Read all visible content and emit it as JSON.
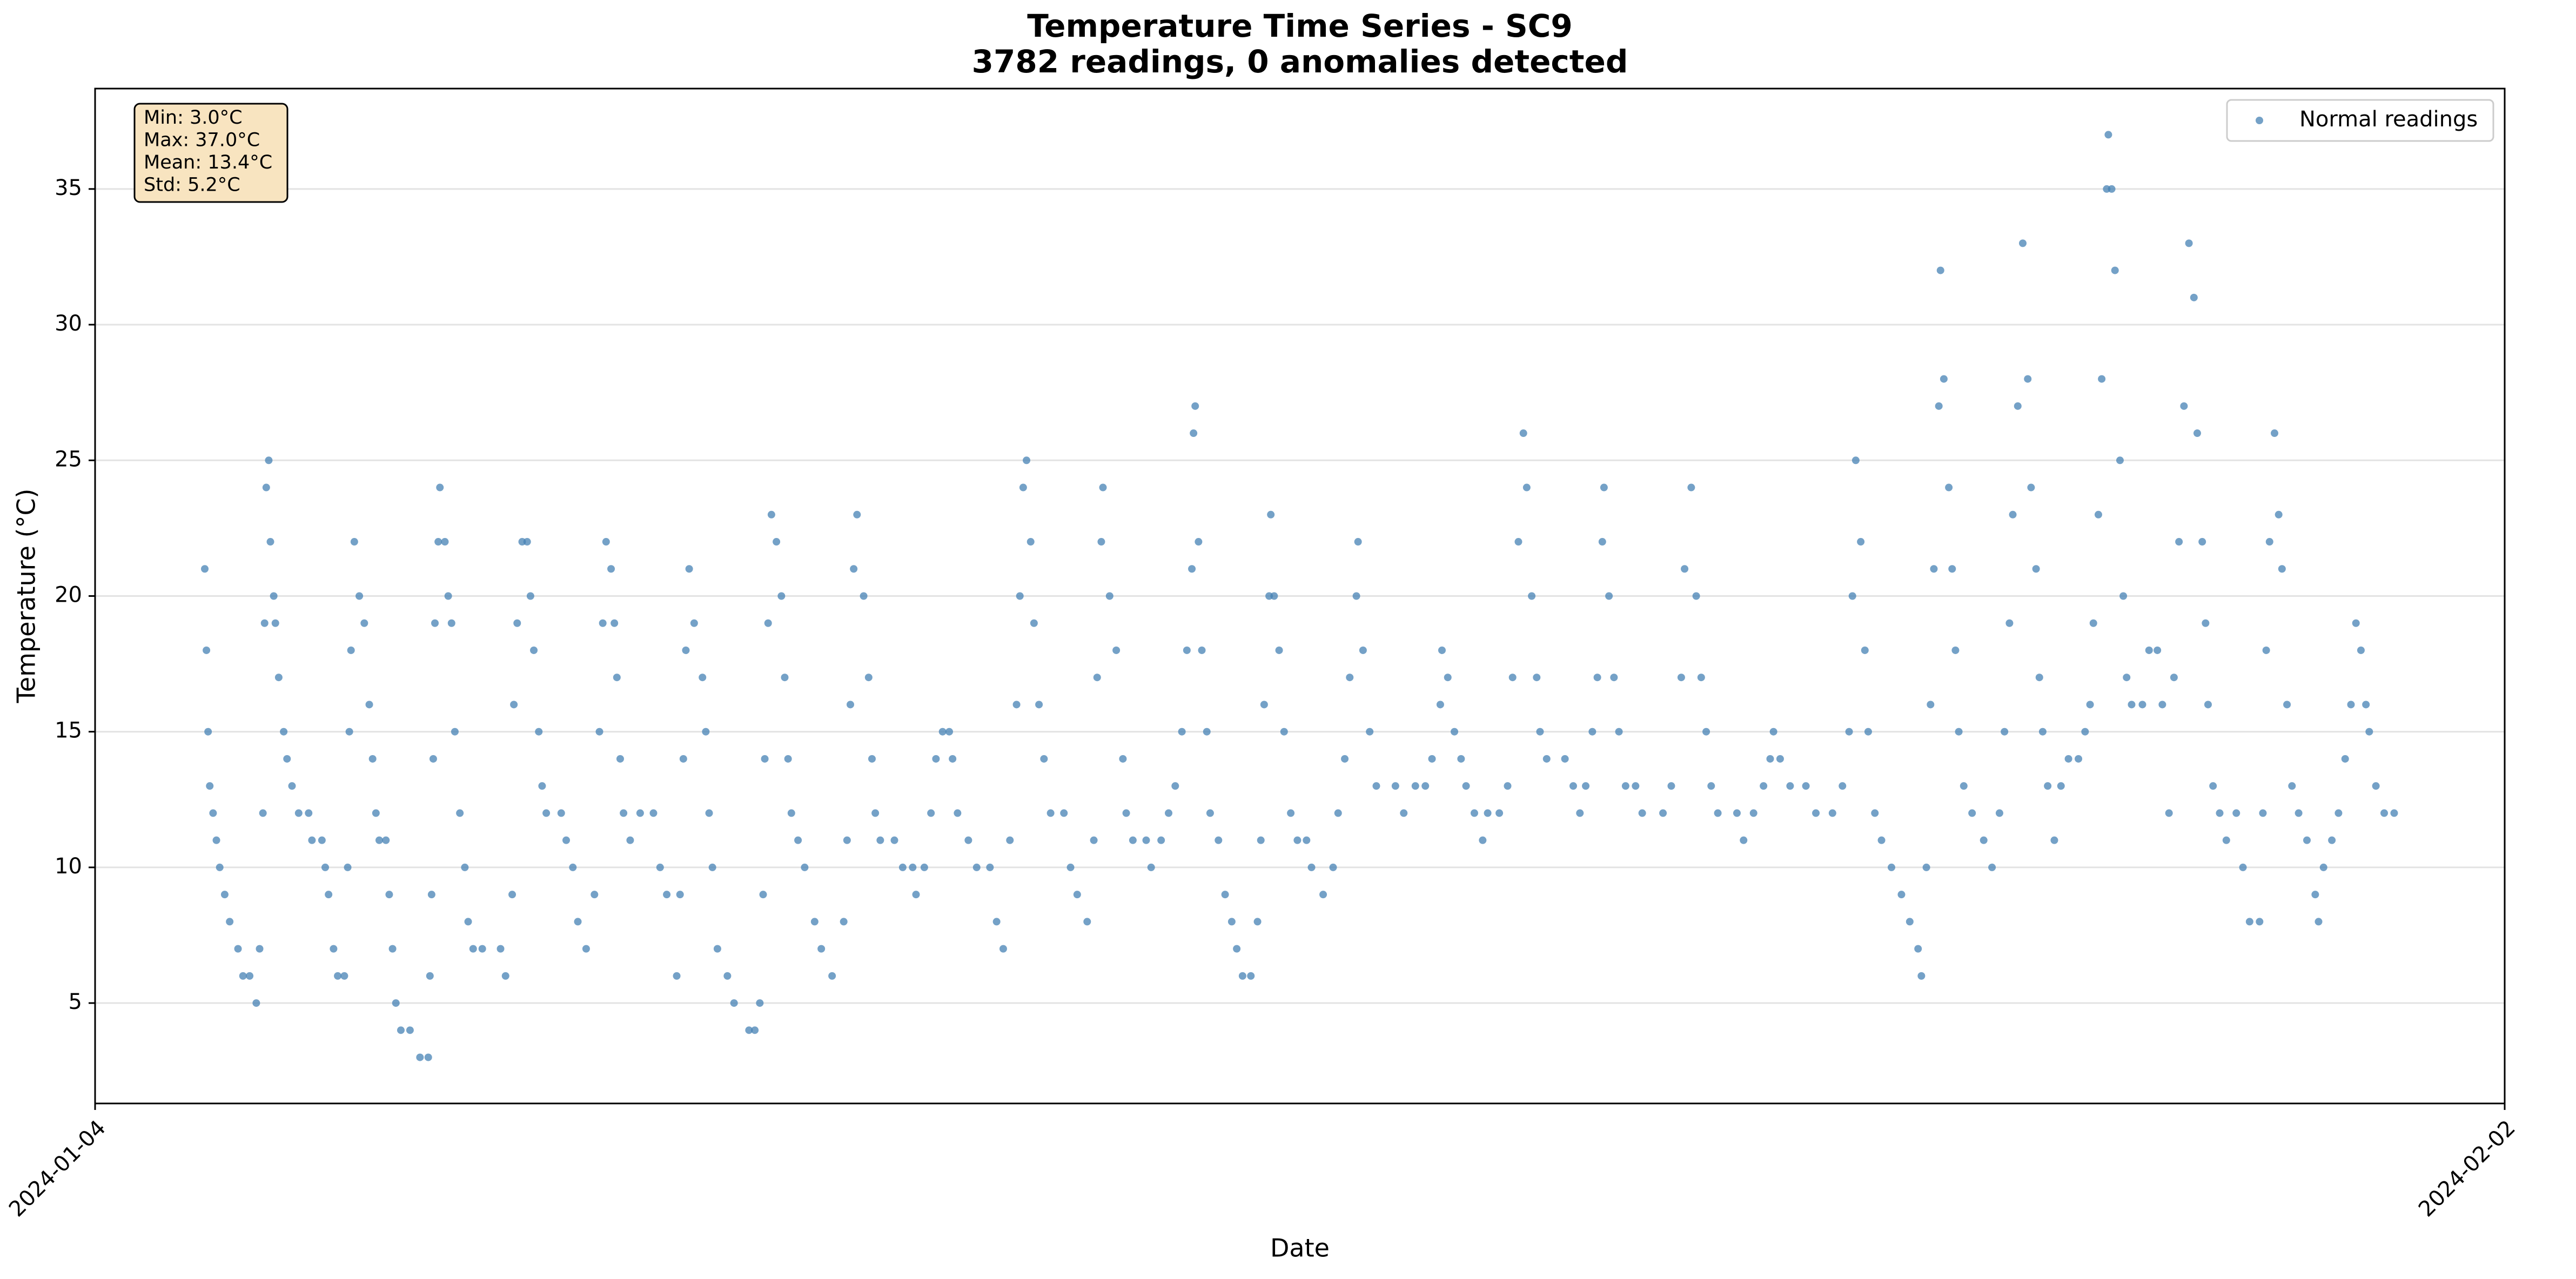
{
  "chart_data": {
    "type": "scatter",
    "title": "Temperature Time Series - SC9",
    "subtitle": "3782 readings, 0 anomalies detected",
    "xlabel": "Date",
    "ylabel": "Temperature (°C)",
    "stats": [
      "Min: 3.0°C",
      "Max: 37.0°C",
      "Mean: 13.4°C",
      "Std: 5.2°C"
    ],
    "legend": "upper right",
    "grid": true,
    "xlim": [
      0,
      29
    ],
    "xticks": [
      {
        "value": 0,
        "label": "2024-01-04"
      },
      {
        "value": 29,
        "label": "2024-02-02"
      }
    ],
    "ylim": [
      1.3,
      38.7
    ],
    "yticks": [
      5,
      10,
      15,
      20,
      25,
      30,
      35
    ],
    "x": [
      1.32,
      1.34,
      1.36,
      1.38,
      1.42,
      1.46,
      1.5,
      1.56,
      1.62,
      1.72,
      1.78,
      1.86,
      1.94,
      1.98,
      2.02,
      2.04,
      2.06,
      2.09,
      2.11,
      2.15,
      2.17,
      2.21,
      2.27,
      2.31,
      2.37,
      2.45,
      2.57,
      2.61,
      2.73,
      2.77,
      2.81,
      2.87,
      2.92,
      3.0,
      3.04,
      3.06,
      3.08,
      3.12,
      3.18,
      3.24,
      3.3,
      3.34,
      3.38,
      3.42,
      3.5,
      3.54,
      3.58,
      3.62,
      3.68,
      3.79,
      3.91,
      4.01,
      4.03,
      4.05,
      4.07,
      4.09,
      4.13,
      4.15,
      4.21,
      4.25,
      4.29,
      4.33,
      4.39,
      4.45,
      4.49,
      4.55,
      4.66,
      4.88,
      4.94,
      5.02,
      5.04,
      5.08,
      5.14,
      5.2,
      5.24,
      5.28,
      5.34,
      5.38,
      5.43,
      5.61,
      5.67,
      5.75,
      5.81,
      5.91,
      6.01,
      6.07,
      6.11,
      6.15,
      6.21,
      6.25,
      6.28,
      6.32,
      6.36,
      6.44,
      6.56,
      6.72,
      6.8,
      6.88,
      7.0,
      7.04,
      7.08,
      7.11,
      7.15,
      7.21,
      7.31,
      7.35,
      7.39,
      7.43,
      7.49,
      7.61,
      7.69,
      7.87,
      7.94,
      8.0,
      8.04,
      8.06,
      8.1,
      8.14,
      8.2,
      8.26,
      8.3,
      8.34,
      8.38,
      8.46,
      8.54,
      8.66,
      8.74,
      8.87,
      9.01,
      9.05,
      9.09,
      9.13,
      9.17,
      9.25,
      9.31,
      9.35,
      9.39,
      9.45,
      9.62,
      9.72,
      9.84,
      9.88,
      9.98,
      10.06,
      10.12,
      10.2,
      10.28,
      10.32,
      10.38,
      10.51,
      10.61,
      10.77,
      10.85,
      10.93,
      11.01,
      11.09,
      11.13,
      11.17,
      11.21,
      11.26,
      11.3,
      11.36,
      11.42,
      11.5,
      11.66,
      11.74,
      11.82,
      11.94,
      12.02,
      12.06,
      12.11,
      12.13,
      12.21,
      12.29,
      12.37,
      12.41,
      12.49,
      12.65,
      12.71,
      12.83,
      12.92,
      13.0,
      13.08,
      13.14,
      13.2,
      13.22,
      13.24,
      13.28,
      13.32,
      13.38,
      13.42,
      13.52,
      13.6,
      13.68,
      13.74,
      13.81,
      13.91,
      13.99,
      14.03,
      14.07,
      14.13,
      14.15,
      14.19,
      14.25,
      14.31,
      14.39,
      14.47,
      14.58,
      14.64,
      14.78,
      14.9,
      14.96,
      15.04,
      15.1,
      15.18,
      15.2,
      15.26,
      15.34,
      15.42,
      15.65,
      15.75,
      15.89,
      16.01,
      16.09,
      16.19,
      16.21,
      16.28,
      16.36,
      16.44,
      16.5,
      16.6,
      16.7,
      16.76,
      16.9,
      17.0,
      17.06,
      17.13,
      17.19,
      17.23,
      17.29,
      17.35,
      17.39,
      17.47,
      17.69,
      17.79,
      17.87,
      17.94,
      18.02,
      18.08,
      18.14,
      18.16,
      18.22,
      18.28,
      18.34,
      18.42,
      18.54,
      18.62,
      18.87,
      18.97,
      19.09,
      19.13,
      19.21,
      19.27,
      19.33,
      19.39,
      19.45,
      19.53,
      19.76,
      19.84,
      19.96,
      20.08,
      20.16,
      20.2,
      20.28,
      20.4,
      20.59,
      20.71,
      20.91,
      21.03,
      21.11,
      21.15,
      21.19,
      21.25,
      21.3,
      21.34,
      21.42,
      21.5,
      21.62,
      21.74,
      21.84,
      21.94,
      21.98,
      22.04,
      22.09,
      22.13,
      22.19,
      22.21,
      22.25,
      22.31,
      22.35,
      22.39,
      22.43,
      22.49,
      22.59,
      22.73,
      22.83,
      22.92,
      22.98,
      23.04,
      23.08,
      23.14,
      23.2,
      23.26,
      23.3,
      23.36,
      23.4,
      23.44,
      23.5,
      23.58,
      23.66,
      23.75,
      23.87,
      23.95,
      24.01,
      24.05,
      24.11,
      24.15,
      24.21,
      24.23,
      24.27,
      24.31,
      24.37,
      24.41,
      24.45,
      24.51,
      24.64,
      24.72,
      24.82,
      24.88,
      24.96,
      25.02,
      25.08,
      25.14,
      25.2,
      25.26,
      25.3,
      25.36,
      25.4,
      25.43,
      25.49,
      25.57,
      25.65,
      25.77,
      25.85,
      25.93,
      26.05,
      26.09,
      26.13,
      26.17,
      26.23,
      26.28,
      26.32,
      26.38,
      26.44,
      26.52,
      26.62,
      26.72,
      26.76,
      26.82,
      26.92,
      27.0,
      27.08,
      27.15,
      27.21,
      27.27,
      27.33,
      27.37,
      27.45,
      27.55,
      27.67
    ],
    "series": [
      {
        "name": "Normal readings",
        "color": "#4682b4",
        "values": [
          21,
          18,
          15,
          13,
          12,
          11,
          10,
          9,
          8,
          7,
          6,
          6,
          5,
          7,
          12,
          19,
          24,
          25,
          22,
          20,
          19,
          17,
          15,
          14,
          13,
          12,
          12,
          11,
          11,
          10,
          9,
          7,
          6,
          6,
          10,
          15,
          18,
          22,
          20,
          19,
          16,
          14,
          12,
          11,
          11,
          9,
          7,
          5,
          4,
          4,
          3,
          3,
          6,
          9,
          14,
          19,
          22,
          24,
          22,
          20,
          19,
          15,
          12,
          10,
          8,
          7,
          7,
          7,
          6,
          9,
          16,
          19,
          22,
          22,
          20,
          18,
          15,
          13,
          12,
          12,
          11,
          10,
          8,
          7,
          9,
          15,
          19,
          22,
          21,
          19,
          17,
          14,
          12,
          11,
          12,
          12,
          10,
          9,
          6,
          9,
          14,
          18,
          21,
          19,
          17,
          15,
          12,
          10,
          7,
          6,
          5,
          4,
          4,
          5,
          9,
          14,
          19,
          23,
          22,
          20,
          17,
          14,
          12,
          11,
          10,
          8,
          7,
          6,
          8,
          11,
          16,
          21,
          23,
          20,
          17,
          14,
          12,
          11,
          11,
          10,
          10,
          9,
          10,
          12,
          14,
          15,
          15,
          14,
          12,
          11,
          10,
          10,
          8,
          7,
          11,
          16,
          20,
          24,
          25,
          22,
          19,
          16,
          14,
          12,
          12,
          10,
          9,
          8,
          11,
          17,
          22,
          24,
          20,
          18,
          14,
          12,
          11,
          11,
          10,
          11,
          12,
          13,
          15,
          18,
          21,
          26,
          27,
          22,
          18,
          15,
          12,
          11,
          9,
          8,
          7,
          6,
          6,
          8,
          11,
          16,
          20,
          23,
          20,
          18,
          15,
          12,
          11,
          11,
          10,
          9,
          10,
          12,
          14,
          17,
          20,
          22,
          18,
          15,
          13,
          13,
          12,
          13,
          13,
          14,
          16,
          18,
          17,
          15,
          14,
          13,
          12,
          11,
          12,
          12,
          13,
          17,
          22,
          26,
          24,
          20,
          17,
          15,
          14,
          14,
          13,
          12,
          13,
          15,
          17,
          22,
          24,
          20,
          17,
          15,
          13,
          13,
          12,
          12,
          13,
          17,
          21,
          24,
          20,
          17,
          15,
          13,
          12,
          12,
          11,
          12,
          13,
          14,
          15,
          14,
          13,
          13,
          12,
          12,
          13,
          15,
          20,
          25,
          22,
          18,
          15,
          12,
          11,
          10,
          9,
          8,
          7,
          6,
          10,
          16,
          21,
          27,
          32,
          28,
          24,
          21,
          18,
          15,
          13,
          12,
          11,
          10,
          12,
          15,
          19,
          23,
          27,
          33,
          28,
          24,
          21,
          17,
          15,
          13,
          11,
          13,
          14,
          14,
          15,
          16,
          19,
          23,
          28,
          35,
          37,
          35,
          32,
          25,
          20,
          17,
          16,
          16,
          18,
          18,
          16,
          12,
          17,
          22,
          27,
          33,
          31,
          26,
          22,
          19,
          16,
          13,
          12,
          11,
          12,
          10,
          8,
          8,
          12,
          18,
          22,
          26,
          23,
          21,
          16,
          13,
          12,
          11,
          9,
          8,
          10,
          11,
          12,
          14,
          16,
          19,
          18,
          16,
          15,
          13,
          12,
          12
        ]
      }
    ]
  }
}
